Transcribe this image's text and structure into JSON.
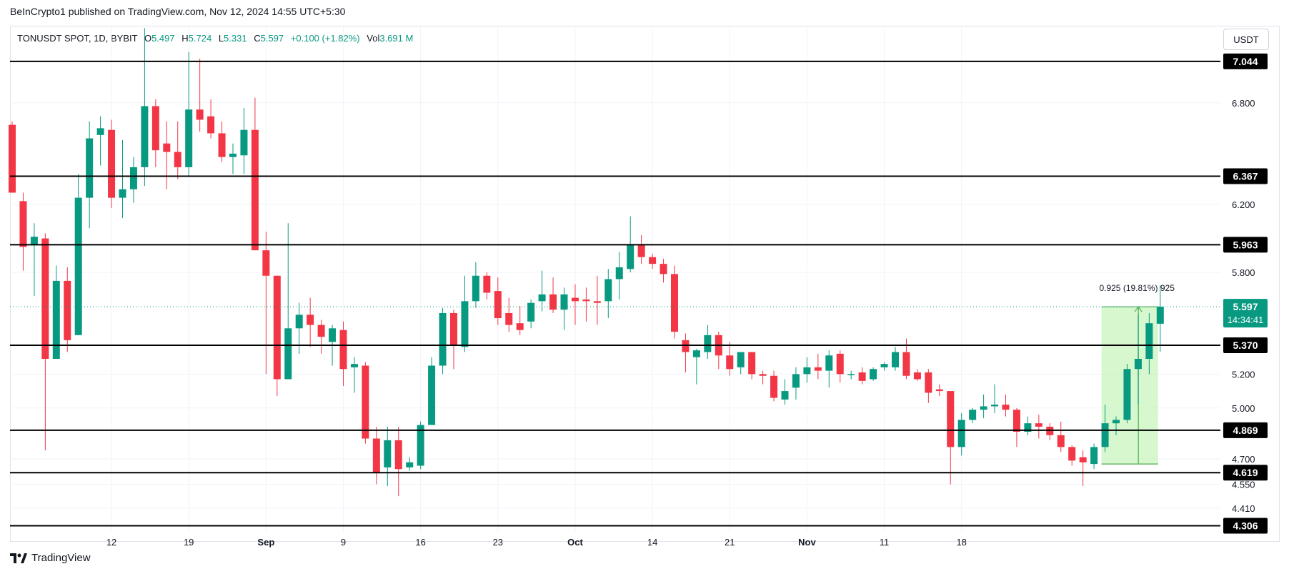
{
  "header": {
    "published": "BeInCrypto1 published on TradingView.com, Nov 12, 2024 14:55 UTC+5:30"
  },
  "symbol": {
    "name": "TONUSDT SPOT, 1D, BYBIT",
    "open_label": "O",
    "open": "5.497",
    "high_label": "H",
    "high": "5.724",
    "low_label": "L",
    "low": "5.331",
    "close_label": "C",
    "close": "5.597",
    "change": "+0.100 (+1.82%)",
    "vol_label": "Vol",
    "vol": "3.691 M"
  },
  "currency": "USDT",
  "footer": {
    "brand": "TradingView"
  },
  "colors": {
    "up": "#089981",
    "down": "#f23645",
    "level": "#000000",
    "measure": "#b7f0a6"
  },
  "chart_data": {
    "type": "candlestick",
    "y_ticks": [
      "6.800",
      "6.200",
      "5.800",
      "5.200",
      "5.000",
      "4.700",
      "4.550",
      "4.410"
    ],
    "y_range": [
      4.27,
      7.25
    ],
    "x_ticks": [
      "12",
      "19",
      "Sep",
      "9",
      "16",
      "23",
      "Oct",
      "14",
      "21",
      "Nov",
      "11",
      "18"
    ],
    "levels": [
      7.044,
      6.367,
      5.963,
      5.37,
      4.869,
      4.619,
      4.306
    ],
    "level_labels": [
      "7.044",
      "6.367",
      "5.963",
      "5.370",
      "4.869",
      "4.619",
      "4.306"
    ],
    "last_price": "5.597",
    "countdown": "14:34:41",
    "measure_label": "0.925 (19.81%) 925",
    "measure": {
      "from": 4.67,
      "to": 5.597
    },
    "candles": [
      {
        "o": 6.67,
        "h": 6.69,
        "l": 6.27,
        "c": 6.27
      },
      {
        "o": 6.22,
        "h": 6.27,
        "l": 5.81,
        "c": 5.95
      },
      {
        "o": 5.96,
        "h": 6.09,
        "l": 5.66,
        "c": 6.01
      },
      {
        "o": 6.0,
        "h": 6.03,
        "l": 4.75,
        "c": 5.29
      },
      {
        "o": 5.29,
        "h": 5.84,
        "l": 5.29,
        "c": 5.75
      },
      {
        "o": 5.75,
        "h": 5.83,
        "l": 5.33,
        "c": 5.4
      },
      {
        "o": 5.43,
        "h": 6.38,
        "l": 5.43,
        "c": 6.24
      },
      {
        "o": 6.24,
        "h": 6.69,
        "l": 6.06,
        "c": 6.59
      },
      {
        "o": 6.61,
        "h": 6.72,
        "l": 6.43,
        "c": 6.65
      },
      {
        "o": 6.64,
        "h": 6.7,
        "l": 6.18,
        "c": 6.24
      },
      {
        "o": 6.24,
        "h": 6.58,
        "l": 6.12,
        "c": 6.29
      },
      {
        "o": 6.29,
        "h": 6.48,
        "l": 6.21,
        "c": 6.42
      },
      {
        "o": 6.42,
        "h": 7.24,
        "l": 6.31,
        "c": 6.78
      },
      {
        "o": 6.78,
        "h": 6.82,
        "l": 6.42,
        "c": 6.52
      },
      {
        "o": 6.56,
        "h": 6.69,
        "l": 6.29,
        "c": 6.51
      },
      {
        "o": 6.51,
        "h": 6.69,
        "l": 6.35,
        "c": 6.42
      },
      {
        "o": 6.42,
        "h": 7.1,
        "l": 6.37,
        "c": 6.76
      },
      {
        "o": 6.76,
        "h": 7.06,
        "l": 6.63,
        "c": 6.7
      },
      {
        "o": 6.72,
        "h": 6.82,
        "l": 6.59,
        "c": 6.62
      },
      {
        "o": 6.62,
        "h": 6.69,
        "l": 6.45,
        "c": 6.48
      },
      {
        "o": 6.48,
        "h": 6.56,
        "l": 6.38,
        "c": 6.5
      },
      {
        "o": 6.49,
        "h": 6.77,
        "l": 6.38,
        "c": 6.64
      },
      {
        "o": 6.64,
        "h": 6.83,
        "l": 5.94,
        "c": 5.93
      },
      {
        "o": 5.93,
        "h": 6.04,
        "l": 5.2,
        "c": 5.78
      },
      {
        "o": 5.78,
        "h": 5.78,
        "l": 5.07,
        "c": 5.17
      },
      {
        "o": 5.17,
        "h": 6.09,
        "l": 5.17,
        "c": 5.47
      },
      {
        "o": 5.47,
        "h": 5.62,
        "l": 5.32,
        "c": 5.55
      },
      {
        "o": 5.55,
        "h": 5.65,
        "l": 5.36,
        "c": 5.49
      },
      {
        "o": 5.49,
        "h": 5.52,
        "l": 5.32,
        "c": 5.42
      },
      {
        "o": 5.39,
        "h": 5.49,
        "l": 5.25,
        "c": 5.47
      },
      {
        "o": 5.46,
        "h": 5.51,
        "l": 5.13,
        "c": 5.23
      },
      {
        "o": 5.24,
        "h": 5.3,
        "l": 5.09,
        "c": 5.26
      },
      {
        "o": 5.25,
        "h": 5.27,
        "l": 4.79,
        "c": 4.82
      },
      {
        "o": 4.82,
        "h": 4.89,
        "l": 4.55,
        "c": 4.62
      },
      {
        "o": 4.65,
        "h": 4.89,
        "l": 4.54,
        "c": 4.81
      },
      {
        "o": 4.81,
        "h": 4.89,
        "l": 4.48,
        "c": 4.64
      },
      {
        "o": 4.65,
        "h": 4.71,
        "l": 4.63,
        "c": 4.68
      },
      {
        "o": 4.66,
        "h": 4.92,
        "l": 4.64,
        "c": 4.9
      },
      {
        "o": 4.9,
        "h": 5.3,
        "l": 4.9,
        "c": 5.25
      },
      {
        "o": 5.25,
        "h": 5.59,
        "l": 5.2,
        "c": 5.56
      },
      {
        "o": 5.56,
        "h": 5.58,
        "l": 5.23,
        "c": 5.37
      },
      {
        "o": 5.36,
        "h": 5.78,
        "l": 5.33,
        "c": 5.63
      },
      {
        "o": 5.63,
        "h": 5.86,
        "l": 5.59,
        "c": 5.78
      },
      {
        "o": 5.78,
        "h": 5.8,
        "l": 5.64,
        "c": 5.68
      },
      {
        "o": 5.69,
        "h": 5.77,
        "l": 5.49,
        "c": 5.53
      },
      {
        "o": 5.56,
        "h": 5.65,
        "l": 5.45,
        "c": 5.49
      },
      {
        "o": 5.5,
        "h": 5.6,
        "l": 5.43,
        "c": 5.46
      },
      {
        "o": 5.51,
        "h": 5.64,
        "l": 5.47,
        "c": 5.62
      },
      {
        "o": 5.63,
        "h": 5.81,
        "l": 5.57,
        "c": 5.67
      },
      {
        "o": 5.67,
        "h": 5.77,
        "l": 5.56,
        "c": 5.58
      },
      {
        "o": 5.58,
        "h": 5.71,
        "l": 5.46,
        "c": 5.67
      },
      {
        "o": 5.65,
        "h": 5.73,
        "l": 5.49,
        "c": 5.63
      },
      {
        "o": 5.64,
        "h": 5.71,
        "l": 5.51,
        "c": 5.63
      },
      {
        "o": 5.63,
        "h": 5.78,
        "l": 5.49,
        "c": 5.62
      },
      {
        "o": 5.63,
        "h": 5.82,
        "l": 5.53,
        "c": 5.76
      },
      {
        "o": 5.76,
        "h": 5.92,
        "l": 5.64,
        "c": 5.83
      },
      {
        "o": 5.82,
        "h": 6.13,
        "l": 5.8,
        "c": 5.96
      },
      {
        "o": 5.96,
        "h": 6.02,
        "l": 5.85,
        "c": 5.89
      },
      {
        "o": 5.89,
        "h": 5.91,
        "l": 5.82,
        "c": 5.85
      },
      {
        "o": 5.85,
        "h": 5.88,
        "l": 5.74,
        "c": 5.79
      },
      {
        "o": 5.79,
        "h": 5.84,
        "l": 5.41,
        "c": 5.45
      },
      {
        "o": 5.4,
        "h": 5.44,
        "l": 5.21,
        "c": 5.33
      },
      {
        "o": 5.3,
        "h": 5.35,
        "l": 5.14,
        "c": 5.34
      },
      {
        "o": 5.33,
        "h": 5.49,
        "l": 5.29,
        "c": 5.43
      },
      {
        "o": 5.43,
        "h": 5.45,
        "l": 5.23,
        "c": 5.31
      },
      {
        "o": 5.31,
        "h": 5.39,
        "l": 5.19,
        "c": 5.23
      },
      {
        "o": 5.24,
        "h": 5.32,
        "l": 5.2,
        "c": 5.33
      },
      {
        "o": 5.33,
        "h": 5.33,
        "l": 5.17,
        "c": 5.2
      },
      {
        "o": 5.2,
        "h": 5.22,
        "l": 5.14,
        "c": 5.19
      },
      {
        "o": 5.19,
        "h": 5.22,
        "l": 5.04,
        "c": 5.06
      },
      {
        "o": 5.05,
        "h": 5.17,
        "l": 5.02,
        "c": 5.1
      },
      {
        "o": 5.12,
        "h": 5.24,
        "l": 5.05,
        "c": 5.2
      },
      {
        "o": 5.2,
        "h": 5.3,
        "l": 5.15,
        "c": 5.24
      },
      {
        "o": 5.24,
        "h": 5.32,
        "l": 5.17,
        "c": 5.22
      },
      {
        "o": 5.22,
        "h": 5.34,
        "l": 5.12,
        "c": 5.31
      },
      {
        "o": 5.32,
        "h": 5.34,
        "l": 5.15,
        "c": 5.2
      },
      {
        "o": 5.2,
        "h": 5.22,
        "l": 5.17,
        "c": 5.2
      },
      {
        "o": 5.21,
        "h": 5.24,
        "l": 5.14,
        "c": 5.16
      },
      {
        "o": 5.17,
        "h": 5.24,
        "l": 5.16,
        "c": 5.23
      },
      {
        "o": 5.24,
        "h": 5.27,
        "l": 5.22,
        "c": 5.26
      },
      {
        "o": 5.24,
        "h": 5.36,
        "l": 5.22,
        "c": 5.33
      },
      {
        "o": 5.33,
        "h": 5.41,
        "l": 5.17,
        "c": 5.19
      },
      {
        "o": 5.21,
        "h": 5.23,
        "l": 5.16,
        "c": 5.17
      },
      {
        "o": 5.21,
        "h": 5.23,
        "l": 5.03,
        "c": 5.09
      },
      {
        "o": 5.11,
        "h": 5.14,
        "l": 5.07,
        "c": 5.1
      },
      {
        "o": 5.1,
        "h": 5.1,
        "l": 4.55,
        "c": 4.77
      },
      {
        "o": 4.77,
        "h": 4.97,
        "l": 4.72,
        "c": 4.93
      },
      {
        "o": 4.93,
        "h": 5.0,
        "l": 4.91,
        "c": 4.99
      },
      {
        "o": 4.99,
        "h": 5.08,
        "l": 4.94,
        "c": 5.01
      },
      {
        "o": 5.01,
        "h": 5.14,
        "l": 4.97,
        "c": 5.02
      },
      {
        "o": 5.02,
        "h": 5.08,
        "l": 4.95,
        "c": 4.99
      },
      {
        "o": 4.99,
        "h": 5.0,
        "l": 4.77,
        "c": 4.86
      },
      {
        "o": 4.86,
        "h": 4.95,
        "l": 4.84,
        "c": 4.91
      },
      {
        "o": 4.91,
        "h": 4.96,
        "l": 4.82,
        "c": 4.89
      },
      {
        "o": 4.89,
        "h": 4.91,
        "l": 4.81,
        "c": 4.84
      },
      {
        "o": 4.84,
        "h": 4.92,
        "l": 4.74,
        "c": 4.77
      },
      {
        "o": 4.77,
        "h": 4.78,
        "l": 4.66,
        "c": 4.69
      },
      {
        "o": 4.71,
        "h": 4.75,
        "l": 4.54,
        "c": 4.68
      },
      {
        "o": 4.67,
        "h": 4.79,
        "l": 4.64,
        "c": 4.77
      },
      {
        "o": 4.77,
        "h": 5.02,
        "l": 4.74,
        "c": 4.91
      },
      {
        "o": 4.91,
        "h": 4.95,
        "l": 4.84,
        "c": 4.93
      },
      {
        "o": 4.93,
        "h": 5.26,
        "l": 4.91,
        "c": 5.23
      },
      {
        "o": 5.23,
        "h": 5.55,
        "l": 5.02,
        "c": 5.29
      },
      {
        "o": 5.29,
        "h": 5.56,
        "l": 5.2,
        "c": 5.5
      },
      {
        "o": 5.497,
        "h": 5.724,
        "l": 5.331,
        "c": 5.597
      }
    ]
  }
}
